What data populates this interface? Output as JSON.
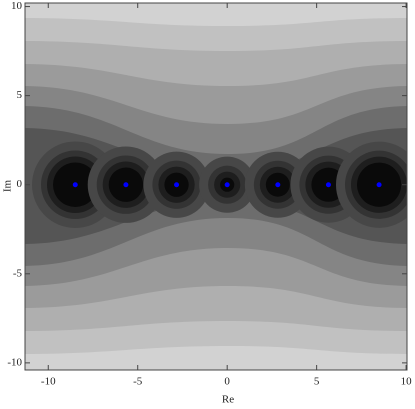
{
  "chart_data": {
    "type": "scatter",
    "x_label": "Re",
    "y_label": "Im",
    "series": [
      {
        "color": "#0000ff",
        "x": [
          -8.49,
          -5.66,
          -2.83,
          0,
          2.83,
          5.66,
          8.49
        ],
        "values": [
          0,
          0,
          0,
          0,
          0,
          0,
          0
        ]
      }
    ],
    "xlim": [
      -11.3,
      10.05
    ],
    "ylim": [
      -10.4,
      10.2
    ],
    "xticks": [
      -10,
      -5,
      0,
      5,
      10
    ],
    "yticks": [
      -10,
      -5,
      0,
      5,
      10
    ]
  }
}
